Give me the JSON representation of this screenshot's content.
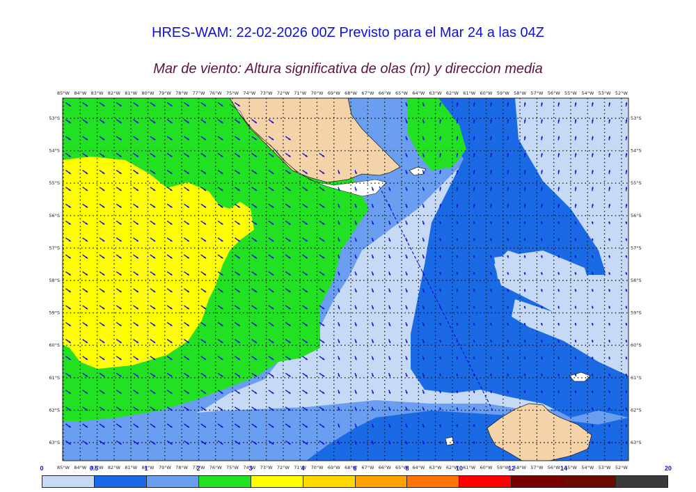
{
  "header": {
    "title": "HRES-WAM: 22-02-2026 00Z Previsto para el Mar 24 a las 04Z",
    "subtitle": "Mar de viento: Altura significativa de olas (m) y direccion media"
  },
  "map": {
    "lon_ticks": [
      "85°W",
      "84°W",
      "83°W",
      "82°W",
      "81°W",
      "80°W",
      "79°W",
      "78°W",
      "77°W",
      "76°W",
      "75°W",
      "74°W",
      "73°W",
      "72°W",
      "71°W",
      "70°W",
      "69°W",
      "68°W",
      "67°W",
      "66°W",
      "65°W",
      "64°W",
      "63°W",
      "62°W",
      "61°W",
      "60°W",
      "59°W",
      "58°W",
      "57°W",
      "56°W",
      "55°W",
      "54°W",
      "53°W",
      "52°W"
    ],
    "lat_ticks": [
      "53°S",
      "54°S",
      "55°S",
      "56°S",
      "57°S",
      "58°S",
      "59°S",
      "60°S",
      "61°S",
      "62°S",
      "63°S"
    ],
    "land_color": "#f5d3a8",
    "arrow_color": "#1010d8"
  },
  "legend": {
    "labels": [
      "0",
      "0.5",
      "1",
      "2",
      "3",
      "4",
      "6",
      "8",
      "10",
      "12",
      "14",
      "20"
    ],
    "colors": [
      "#c6daf5",
      "#1a6ae6",
      "#6a9ef0",
      "#22e022",
      "#ffff00",
      "#ffd800",
      "#ffa200",
      "#ff7400",
      "#ff0000",
      "#7a0000",
      "#6b0a00",
      "#3a3a3a"
    ]
  }
}
